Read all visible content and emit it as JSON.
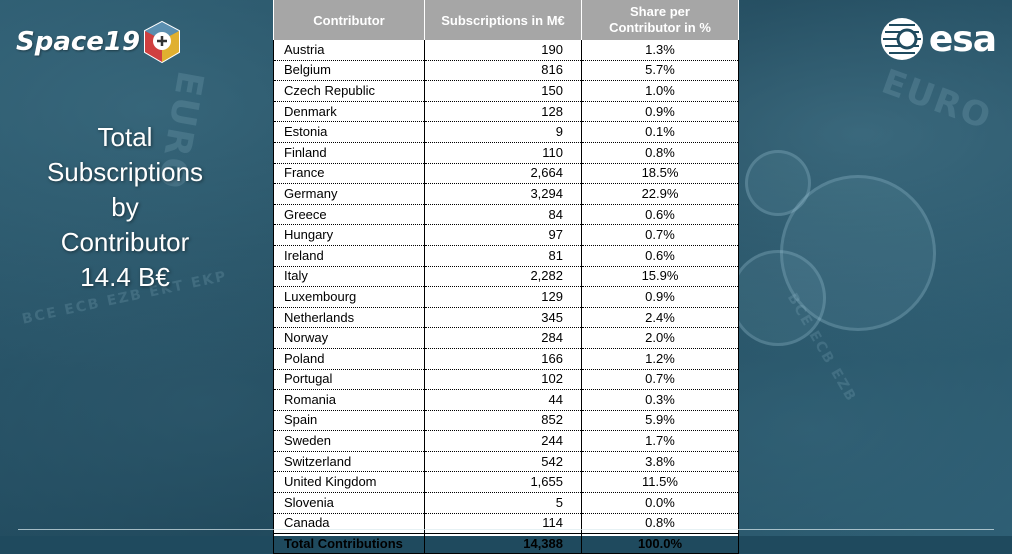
{
  "brand": {
    "left_logo_text": "Space19",
    "right_logo_text": "esa",
    "colors": {
      "header_bg": "#a6a6a6",
      "background": "#1f4a5e"
    },
    "icons": [
      "space19-cube-icon",
      "esa-globe-icon"
    ]
  },
  "headline": {
    "line1": "Total",
    "line2": "Subscriptions",
    "line3": "by",
    "line4": "Contributor",
    "line5": "14.4 B€"
  },
  "table": {
    "headers": {
      "contributor": "Contributor",
      "subscriptions": "Subscriptions in M€",
      "share_line1": "Share per",
      "share_line2": "Contributor in %"
    },
    "rows": [
      {
        "name": "Austria",
        "value": "190",
        "share": "1.3%"
      },
      {
        "name": "Belgium",
        "value": "816",
        "share": "5.7%"
      },
      {
        "name": "Czech Republic",
        "value": "150",
        "share": "1.0%"
      },
      {
        "name": "Denmark",
        "value": "128",
        "share": "0.9%"
      },
      {
        "name": "Estonia",
        "value": "9",
        "share": "0.1%"
      },
      {
        "name": "Finland",
        "value": "110",
        "share": "0.8%"
      },
      {
        "name": "France",
        "value": "2,664",
        "share": "18.5%"
      },
      {
        "name": "Germany",
        "value": "3,294",
        "share": "22.9%"
      },
      {
        "name": "Greece",
        "value": "84",
        "share": "0.6%"
      },
      {
        "name": "Hungary",
        "value": "97",
        "share": "0.7%"
      },
      {
        "name": "Ireland",
        "value": "81",
        "share": "0.6%"
      },
      {
        "name": "Italy",
        "value": "2,282",
        "share": "15.9%"
      },
      {
        "name": "Luxembourg",
        "value": "129",
        "share": "0.9%"
      },
      {
        "name": "Netherlands",
        "value": "345",
        "share": "2.4%"
      },
      {
        "name": "Norway",
        "value": "284",
        "share": "2.0%"
      },
      {
        "name": "Poland",
        "value": "166",
        "share": "1.2%"
      },
      {
        "name": "Portugal",
        "value": "102",
        "share": "0.7%"
      },
      {
        "name": "Romania",
        "value": "44",
        "share": "0.3%"
      },
      {
        "name": "Spain",
        "value": "852",
        "share": "5.9%"
      },
      {
        "name": "Sweden",
        "value": "244",
        "share": "1.7%"
      },
      {
        "name": "Switzerland",
        "value": "542",
        "share": "3.8%"
      },
      {
        "name": "United Kingdom",
        "value": "1,655",
        "share": "11.5%"
      },
      {
        "name": "Slovenia",
        "value": "5",
        "share": "0.0%"
      },
      {
        "name": "Canada",
        "value": "114",
        "share": "0.8%"
      }
    ],
    "total": {
      "name": "Total Contributions",
      "value": "14,388",
      "share": "100.0%"
    }
  }
}
